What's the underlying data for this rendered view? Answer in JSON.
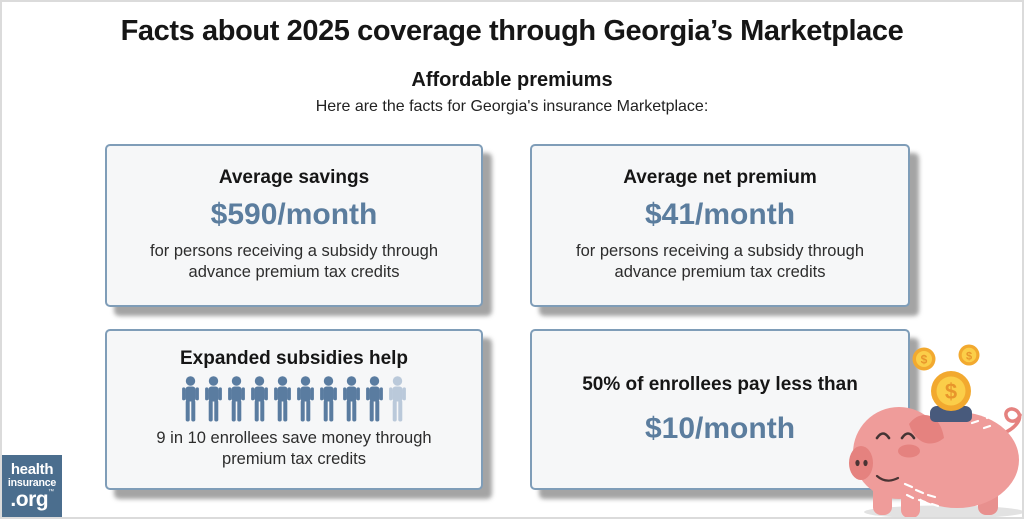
{
  "header": {
    "title": "Facts about 2025 coverage through Georgia’s Marketplace",
    "subtitle": "Affordable premiums",
    "tagline": "Here are the facts for Georgia's insurance Marketplace:"
  },
  "cards": [
    {
      "title": "Average savings",
      "value": "$590/month",
      "description": "for persons receiving a subsidy through advance premium tax credits"
    },
    {
      "title": "Average net premium",
      "value": "$41/month",
      "description": "for persons receiving a subsidy through advance premium tax credits"
    },
    {
      "title": "Expanded subsidies help",
      "description": "9 in 10 enrollees save money through premium tax credits",
      "pictograph": {
        "total": 10,
        "highlighted": 9
      }
    },
    {
      "title": "50% of enrollees pay less than",
      "value": "$10/month"
    }
  ],
  "logo": {
    "line1": "health",
    "line2": "insurance",
    "line3": ".org",
    "trademark": "™"
  },
  "illustration": {
    "name": "piggy-bank-with-coins",
    "coin_symbol": "$"
  },
  "colors": {
    "accent_blue": "#5b7d9e",
    "card_border": "#7f9db8",
    "card_background": "#f6f7f8",
    "person_dark": "#5a7ca0",
    "person_light": "#bac9da",
    "logo_background": "#4b6e8e",
    "pig_pink": "#ef9c9a",
    "pig_dark_pink": "#e5827f",
    "coin_ring": "#f2a92f",
    "coin_face": "#fbce49",
    "coin_symbol_color": "#e8952b",
    "slot_navy": "#485a7c"
  },
  "chart_data": {
    "type": "table",
    "title": "Facts about 2025 coverage through Georgia’s Marketplace",
    "subtitle": "Affordable premiums",
    "stats": [
      {
        "label": "Average savings",
        "value": "$590/month",
        "note": "for persons receiving a subsidy through advance premium tax credits"
      },
      {
        "label": "Average net premium",
        "value": "$41/month",
        "note": "for persons receiving a subsidy through advance premium tax credits"
      },
      {
        "label": "Expanded subsidies help",
        "value": "9 in 10",
        "note": "enrollees save money through premium tax credits",
        "pictograph": {
          "total": 10,
          "highlighted": 9
        }
      },
      {
        "label": "50% of enrollees pay less than",
        "value": "$10/month"
      }
    ]
  }
}
